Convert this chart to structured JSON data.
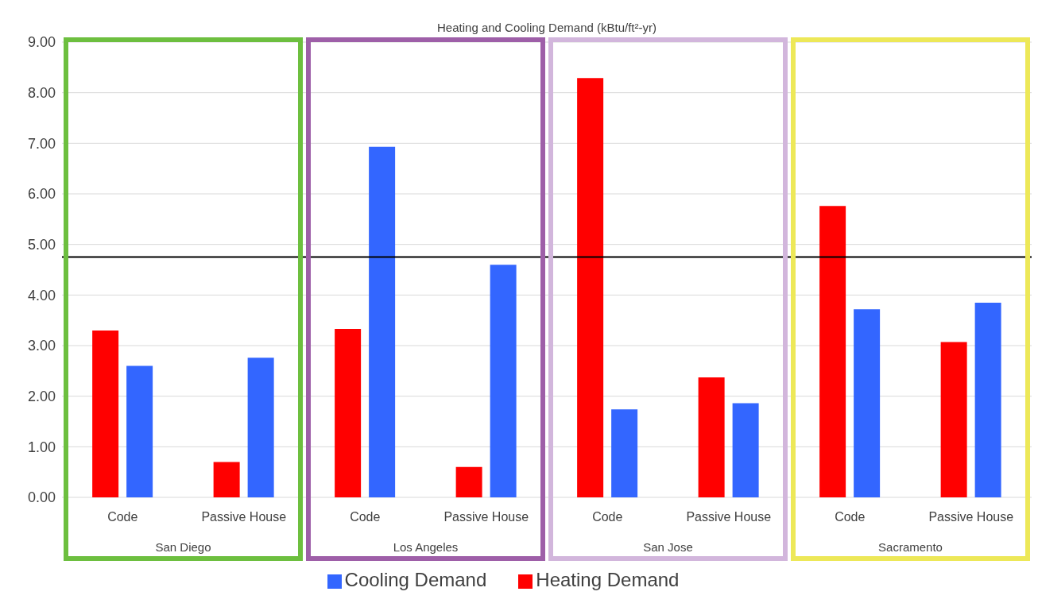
{
  "chart_data": {
    "type": "bar",
    "title": "Heating and Cooling Demand (kBtu/ft²-yr)",
    "categories": [
      "Code",
      "Passive House",
      "Code",
      "Passive House",
      "Code",
      "Passive House",
      "Code",
      "Passive House"
    ],
    "series": [
      {
        "name": "Heating Demand",
        "color": "#ff0000",
        "values": [
          3.3,
          0.7,
          3.33,
          0.6,
          8.29,
          2.37,
          5.76,
          3.07
        ]
      },
      {
        "name": "Cooling Demand",
        "color": "#3366ff",
        "values": [
          2.6,
          2.76,
          6.93,
          4.6,
          1.74,
          1.86,
          3.72,
          3.85
        ]
      }
    ],
    "annotations": [
      "San Diego",
      "Los Angeles",
      "San Jose",
      "Sacramento"
    ],
    "ylim": [
      0,
      9
    ],
    "yticks": [
      {
        "value": 0,
        "label": "0.00"
      },
      {
        "value": 1,
        "label": "1.00"
      },
      {
        "value": 2,
        "label": "2.00"
      },
      {
        "value": 3,
        "label": "3.00"
      },
      {
        "value": 4,
        "label": "4.00"
      },
      {
        "value": 5,
        "label": "5.00"
      },
      {
        "value": 6,
        "label": "6.00"
      },
      {
        "value": 7,
        "label": "7.00"
      },
      {
        "value": 8,
        "label": "8.00"
      },
      {
        "value": 9,
        "label": "9.00"
      }
    ],
    "ref_lines": [
      {
        "axis": "y",
        "value": 4.75,
        "color": "#000000"
      }
    ],
    "grid": "y",
    "legend": "bottom"
  }
}
